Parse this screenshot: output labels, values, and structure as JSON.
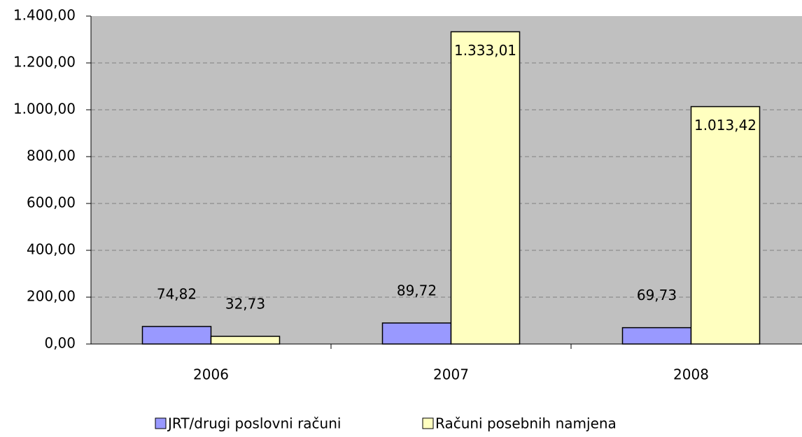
{
  "chart_data": {
    "type": "bar",
    "categories": [
      "2006",
      "2007",
      "2008"
    ],
    "series": [
      {
        "name": "JRT/drugi poslovni računi",
        "color": "#9999ff",
        "values": [
          74.82,
          89.72,
          69.73
        ],
        "value_labels": [
          "74,82",
          "89,72",
          "69,73"
        ]
      },
      {
        "name": "Računi posebnih namjena",
        "color": "#ffffc0",
        "values": [
          32.73,
          1333.01,
          1013.42
        ],
        "value_labels": [
          "32,73",
          "1.333,01",
          "1.013,42"
        ]
      }
    ],
    "ylim": [
      0,
      1400
    ],
    "yticks": [
      {
        "value": 0,
        "label": "0,00"
      },
      {
        "value": 200,
        "label": "200,00"
      },
      {
        "value": 400,
        "label": "400,00"
      },
      {
        "value": 600,
        "label": "600,00"
      },
      {
        "value": 800,
        "label": "800,00"
      },
      {
        "value": 1000,
        "label": "1.000,00"
      },
      {
        "value": 1200,
        "label": "1.200,00"
      },
      {
        "value": 1400,
        "label": "1.400,00"
      }
    ],
    "grid": true,
    "legend": "bottom"
  }
}
